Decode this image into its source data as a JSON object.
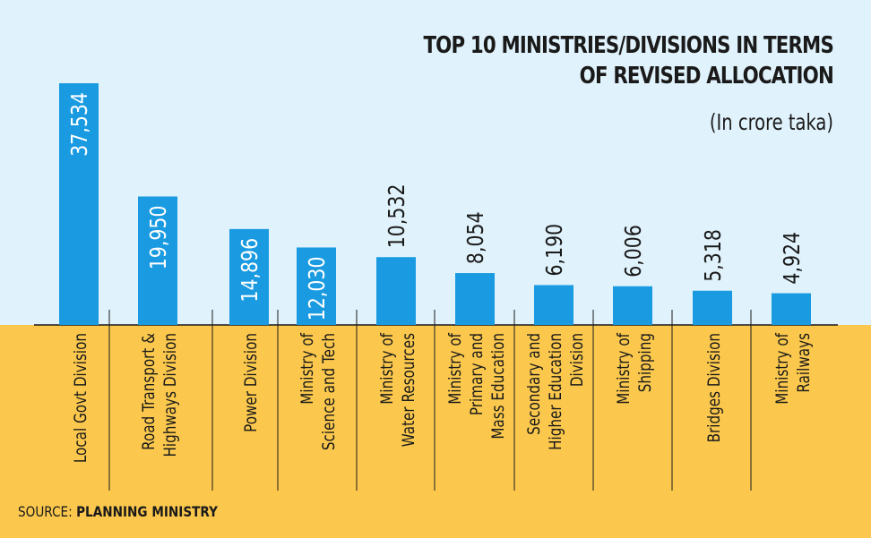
{
  "chart_data": {
    "type": "bar",
    "title": "TOP 10 MINISTRIES/DIVISIONS IN TERMS OF REVISED ALLOCATION",
    "title_lines": [
      "TOP 10 MINISTRIES/DIVISIONS IN TERMS",
      "OF REVISED ALLOCATION"
    ],
    "subtitle": "(In crore taka)",
    "xlabel": "",
    "ylabel": "",
    "ylim": [
      0,
      37534
    ],
    "grid": false,
    "categories": [
      [
        "Local Govt Division"
      ],
      [
        "Road Transport &",
        "Highways Division"
      ],
      [
        "Power Division"
      ],
      [
        "Ministry of",
        "Science and Tech"
      ],
      [
        "Ministry of",
        "Water Resources"
      ],
      [
        "Ministry of",
        "Primary and",
        "Mass Education"
      ],
      [
        "Secondary and",
        "Higher Education",
        "Division"
      ],
      [
        "Ministry of",
        "Shipping"
      ],
      [
        "Bridges Division"
      ],
      [
        "Ministry of",
        "Railways"
      ]
    ],
    "values": [
      37534,
      19950,
      14896,
      12030,
      10532,
      8054,
      6190,
      6006,
      5318,
      4924
    ],
    "value_labels": [
      "37,534",
      "19,950",
      "14,896",
      "12,030",
      "10,532",
      "8,054",
      "6,190",
      "6,006",
      "5,318",
      "4,924"
    ],
    "colors": {
      "bar": "#1a9be1",
      "sky": "#e0f2fb",
      "ground": "#fbc84d",
      "text": "#1a1a1a",
      "inside_label": "#ffffff"
    }
  },
  "source": {
    "prefix": "SOURCE: ",
    "name": "PLANNING MINISTRY"
  }
}
